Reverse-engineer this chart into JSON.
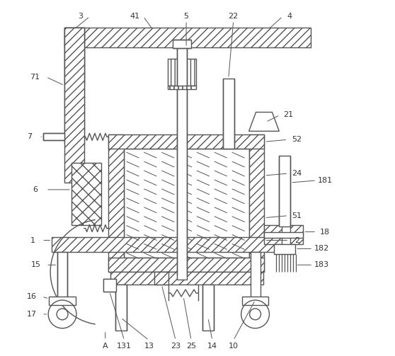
{
  "line_color": "#555555",
  "bg_color": "#ffffff",
  "figsize": [
    5.58,
    5.03
  ],
  "dpi": 100
}
